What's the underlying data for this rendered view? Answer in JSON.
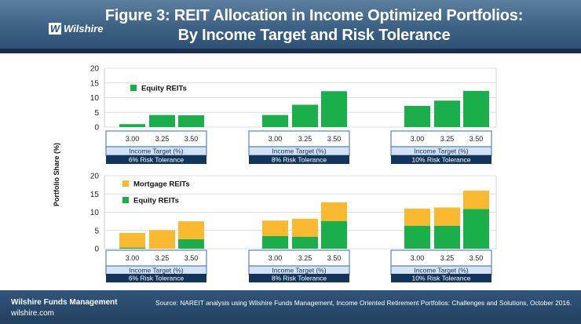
{
  "header": {
    "title_line1": "Figure 3: REIT Allocation in Income Optimized Portfolios:",
    "title_line2": "By Income Target and Risk Tolerance",
    "logo_text": "Wilshire",
    "logo_mark": "W"
  },
  "y_axis_label": "Portfolio Share (%)",
  "footer": {
    "company": "Wilshire Funds Management",
    "website": "wilshire.com",
    "source": "Source: NAREIT analysis using Wilshire Funds Management, Income Oriented Retirement Portfolios: Challenges and Solutions, October 2016."
  },
  "colors": {
    "equity": "#1aaf4b",
    "mortgage": "#fbb92f",
    "axis_box_border": "#5b86b3",
    "band": "#13355c"
  },
  "chart_data": [
    {
      "type": "bar",
      "title": "",
      "ylabel": "Portfolio Share (%)",
      "ylim": [
        0,
        20
      ],
      "yticks": [
        0,
        5,
        10,
        15,
        20
      ],
      "grid": true,
      "legend_placement": "top-left",
      "xlabel": "Income Target (%)",
      "categories": [
        "3.00",
        "3.25",
        "3.50"
      ],
      "groups": [
        "6% Risk Tolerance",
        "8% Risk Tolerance",
        "10% Risk Tolerance"
      ],
      "series": [
        {
          "name": "Equity REITs",
          "color": "#1aaf4b",
          "values": [
            [
              1.0,
              4.1,
              4.0
            ],
            [
              4.1,
              7.6,
              12.2
            ],
            [
              7.2,
              9.0,
              12.3
            ]
          ]
        }
      ]
    },
    {
      "type": "bar",
      "stacked": true,
      "title": "",
      "ylabel": "Portfolio Share (%)",
      "ylim": [
        0,
        20
      ],
      "yticks": [
        0,
        5,
        10,
        15,
        20
      ],
      "grid": true,
      "legend_placement": "top-left",
      "xlabel": "Income Target (%)",
      "categories": [
        "3.00",
        "3.25",
        "3.50"
      ],
      "groups": [
        "6% Risk Tolerance",
        "8% Risk Tolerance",
        "10% Risk Tolerance"
      ],
      "series": [
        {
          "name": "Equity REITs",
          "color": "#1aaf4b",
          "values": [
            [
              0.3,
              0.0,
              2.6
            ],
            [
              3.5,
              3.3,
              7.6
            ],
            [
              6.3,
              6.3,
              10.9
            ]
          ]
        },
        {
          "name": "Mortgage REITs",
          "color": "#fbb92f",
          "values": [
            [
              4.0,
              5.1,
              4.9
            ],
            [
              4.2,
              4.9,
              5.1
            ],
            [
              4.7,
              5.0,
              5.0
            ]
          ]
        }
      ]
    }
  ]
}
